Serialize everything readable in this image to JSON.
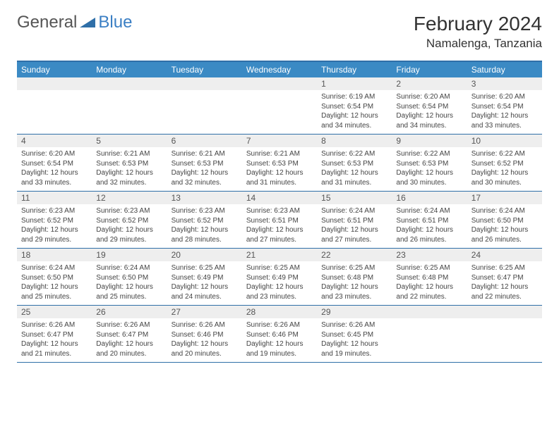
{
  "brand": {
    "name_part1": "General",
    "name_part2": "Blue",
    "text_color": "#555555",
    "accent_color": "#3b7fc4",
    "triangle_color": "#2f6fa8"
  },
  "title": {
    "monthyear": "February 2024",
    "location": "Namalenga, Tanzania",
    "title_fontsize": 28,
    "location_fontsize": 17
  },
  "colors": {
    "header_bg": "#3b8ac4",
    "header_text": "#ffffff",
    "rule": "#2f6fa8",
    "daynum_bg": "#eeeeee",
    "daynum_text": "#555555",
    "body_text": "#444444",
    "page_bg": "#ffffff"
  },
  "layout": {
    "columns": 7,
    "rows": 5,
    "daynum_fontsize": 12,
    "info_fontsize": 10,
    "dayhead_fontsize": 12
  },
  "dayheads": [
    "Sunday",
    "Monday",
    "Tuesday",
    "Wednesday",
    "Thursday",
    "Friday",
    "Saturday"
  ],
  "weeks": [
    [
      {
        "empty": true
      },
      {
        "empty": true
      },
      {
        "empty": true
      },
      {
        "empty": true
      },
      {
        "day": "1",
        "sunrise": "Sunrise: 6:19 AM",
        "sunset": "Sunset: 6:54 PM",
        "daylight1": "Daylight: 12 hours",
        "daylight2": "and 34 minutes."
      },
      {
        "day": "2",
        "sunrise": "Sunrise: 6:20 AM",
        "sunset": "Sunset: 6:54 PM",
        "daylight1": "Daylight: 12 hours",
        "daylight2": "and 34 minutes."
      },
      {
        "day": "3",
        "sunrise": "Sunrise: 6:20 AM",
        "sunset": "Sunset: 6:54 PM",
        "daylight1": "Daylight: 12 hours",
        "daylight2": "and 33 minutes."
      }
    ],
    [
      {
        "day": "4",
        "sunrise": "Sunrise: 6:20 AM",
        "sunset": "Sunset: 6:54 PM",
        "daylight1": "Daylight: 12 hours",
        "daylight2": "and 33 minutes."
      },
      {
        "day": "5",
        "sunrise": "Sunrise: 6:21 AM",
        "sunset": "Sunset: 6:53 PM",
        "daylight1": "Daylight: 12 hours",
        "daylight2": "and 32 minutes."
      },
      {
        "day": "6",
        "sunrise": "Sunrise: 6:21 AM",
        "sunset": "Sunset: 6:53 PM",
        "daylight1": "Daylight: 12 hours",
        "daylight2": "and 32 minutes."
      },
      {
        "day": "7",
        "sunrise": "Sunrise: 6:21 AM",
        "sunset": "Sunset: 6:53 PM",
        "daylight1": "Daylight: 12 hours",
        "daylight2": "and 31 minutes."
      },
      {
        "day": "8",
        "sunrise": "Sunrise: 6:22 AM",
        "sunset": "Sunset: 6:53 PM",
        "daylight1": "Daylight: 12 hours",
        "daylight2": "and 31 minutes."
      },
      {
        "day": "9",
        "sunrise": "Sunrise: 6:22 AM",
        "sunset": "Sunset: 6:53 PM",
        "daylight1": "Daylight: 12 hours",
        "daylight2": "and 30 minutes."
      },
      {
        "day": "10",
        "sunrise": "Sunrise: 6:22 AM",
        "sunset": "Sunset: 6:52 PM",
        "daylight1": "Daylight: 12 hours",
        "daylight2": "and 30 minutes."
      }
    ],
    [
      {
        "day": "11",
        "sunrise": "Sunrise: 6:23 AM",
        "sunset": "Sunset: 6:52 PM",
        "daylight1": "Daylight: 12 hours",
        "daylight2": "and 29 minutes."
      },
      {
        "day": "12",
        "sunrise": "Sunrise: 6:23 AM",
        "sunset": "Sunset: 6:52 PM",
        "daylight1": "Daylight: 12 hours",
        "daylight2": "and 29 minutes."
      },
      {
        "day": "13",
        "sunrise": "Sunrise: 6:23 AM",
        "sunset": "Sunset: 6:52 PM",
        "daylight1": "Daylight: 12 hours",
        "daylight2": "and 28 minutes."
      },
      {
        "day": "14",
        "sunrise": "Sunrise: 6:23 AM",
        "sunset": "Sunset: 6:51 PM",
        "daylight1": "Daylight: 12 hours",
        "daylight2": "and 27 minutes."
      },
      {
        "day": "15",
        "sunrise": "Sunrise: 6:24 AM",
        "sunset": "Sunset: 6:51 PM",
        "daylight1": "Daylight: 12 hours",
        "daylight2": "and 27 minutes."
      },
      {
        "day": "16",
        "sunrise": "Sunrise: 6:24 AM",
        "sunset": "Sunset: 6:51 PM",
        "daylight1": "Daylight: 12 hours",
        "daylight2": "and 26 minutes."
      },
      {
        "day": "17",
        "sunrise": "Sunrise: 6:24 AM",
        "sunset": "Sunset: 6:50 PM",
        "daylight1": "Daylight: 12 hours",
        "daylight2": "and 26 minutes."
      }
    ],
    [
      {
        "day": "18",
        "sunrise": "Sunrise: 6:24 AM",
        "sunset": "Sunset: 6:50 PM",
        "daylight1": "Daylight: 12 hours",
        "daylight2": "and 25 minutes."
      },
      {
        "day": "19",
        "sunrise": "Sunrise: 6:24 AM",
        "sunset": "Sunset: 6:50 PM",
        "daylight1": "Daylight: 12 hours",
        "daylight2": "and 25 minutes."
      },
      {
        "day": "20",
        "sunrise": "Sunrise: 6:25 AM",
        "sunset": "Sunset: 6:49 PM",
        "daylight1": "Daylight: 12 hours",
        "daylight2": "and 24 minutes."
      },
      {
        "day": "21",
        "sunrise": "Sunrise: 6:25 AM",
        "sunset": "Sunset: 6:49 PM",
        "daylight1": "Daylight: 12 hours",
        "daylight2": "and 23 minutes."
      },
      {
        "day": "22",
        "sunrise": "Sunrise: 6:25 AM",
        "sunset": "Sunset: 6:48 PM",
        "daylight1": "Daylight: 12 hours",
        "daylight2": "and 23 minutes."
      },
      {
        "day": "23",
        "sunrise": "Sunrise: 6:25 AM",
        "sunset": "Sunset: 6:48 PM",
        "daylight1": "Daylight: 12 hours",
        "daylight2": "and 22 minutes."
      },
      {
        "day": "24",
        "sunrise": "Sunrise: 6:25 AM",
        "sunset": "Sunset: 6:47 PM",
        "daylight1": "Daylight: 12 hours",
        "daylight2": "and 22 minutes."
      }
    ],
    [
      {
        "day": "25",
        "sunrise": "Sunrise: 6:26 AM",
        "sunset": "Sunset: 6:47 PM",
        "daylight1": "Daylight: 12 hours",
        "daylight2": "and 21 minutes."
      },
      {
        "day": "26",
        "sunrise": "Sunrise: 6:26 AM",
        "sunset": "Sunset: 6:47 PM",
        "daylight1": "Daylight: 12 hours",
        "daylight2": "and 20 minutes."
      },
      {
        "day": "27",
        "sunrise": "Sunrise: 6:26 AM",
        "sunset": "Sunset: 6:46 PM",
        "daylight1": "Daylight: 12 hours",
        "daylight2": "and 20 minutes."
      },
      {
        "day": "28",
        "sunrise": "Sunrise: 6:26 AM",
        "sunset": "Sunset: 6:46 PM",
        "daylight1": "Daylight: 12 hours",
        "daylight2": "and 19 minutes."
      },
      {
        "day": "29",
        "sunrise": "Sunrise: 6:26 AM",
        "sunset": "Sunset: 6:45 PM",
        "daylight1": "Daylight: 12 hours",
        "daylight2": "and 19 minutes."
      },
      {
        "empty": true
      },
      {
        "empty": true
      }
    ]
  ]
}
